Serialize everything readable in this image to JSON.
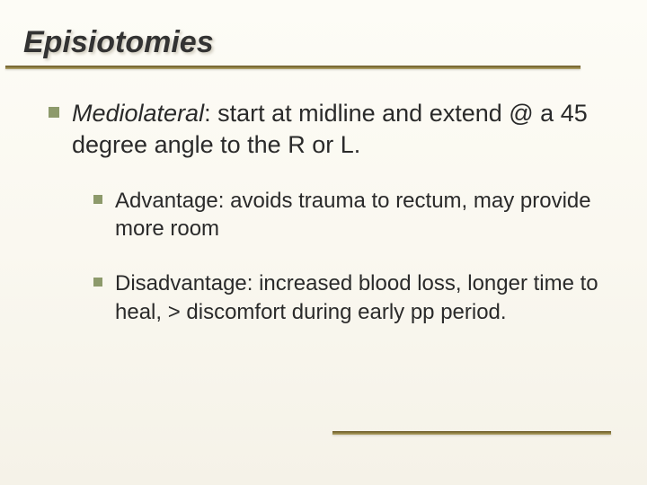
{
  "title": "Episiotomies",
  "colors": {
    "bullet": "#8d9a6b",
    "rule_gradient_start": "#6a5a2a",
    "rule_gradient_mid": "#8a7a3e",
    "rule_gradient_end": "#b8aa74",
    "text": "#2a2a2a",
    "bg_top": "#fdfcf6",
    "bg_bottom": "#f5f2e8"
  },
  "typography": {
    "title_fontsize": 34,
    "title_style": "italic bold",
    "body_l1_fontsize": 27,
    "body_l2_fontsize": 24,
    "font_family": "Arial"
  },
  "main": {
    "term": "Mediolateral",
    "definition_rest": ": start at midline and extend @ a  45 degree angle to the R or L.",
    "subs": [
      {
        "label": "Advantage:  avoids trauma to rectum, may provide more room"
      },
      {
        "label": "Disadvantage:  increased blood loss, longer time to heal, > discomfort during early pp period."
      }
    ]
  },
  "layout": {
    "slide_width": 720,
    "slide_height": 540,
    "top_rule_width": 640,
    "bottom_rule_width": 310
  }
}
